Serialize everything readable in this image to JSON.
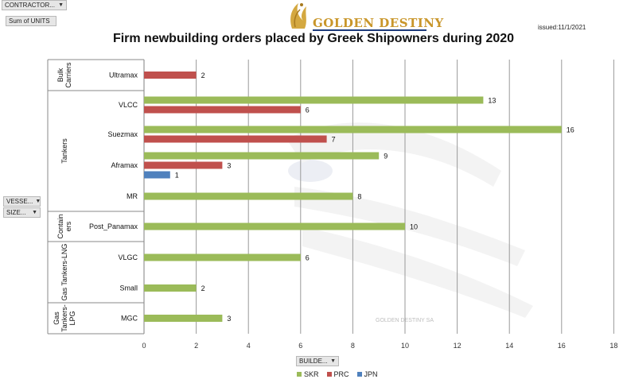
{
  "filters": {
    "contractor": "CONTRACTOR...",
    "sum_units": "Sum of UNITS",
    "vessel": "VESSE...",
    "size": "SIZE...",
    "builder": "BUILDE..."
  },
  "header": {
    "logo_text": "GOLDEN DESTINY",
    "issued": "issued:11/1/2021",
    "watermark": "GOLDEN DESTINY SA"
  },
  "colors": {
    "SKR": "#9bbb59",
    "PRC": "#c0504d",
    "JPN": "#4f81bd"
  },
  "chart_data": {
    "type": "bar",
    "orientation": "horizontal",
    "title": "Firm newbuilding orders placed by Greek Shipowners during 2020",
    "xlim": [
      0,
      18
    ],
    "xticks": [
      0,
      2,
      4,
      6,
      8,
      10,
      12,
      14,
      16,
      18
    ],
    "grid": true,
    "legend_position": "bottom",
    "groups": [
      {
        "label": "Bulk Carriers",
        "label_lines": [
          "Bulk",
          "Carriers"
        ],
        "categories": [
          {
            "label": "Ultramax",
            "bars": [
              {
                "series": "PRC",
                "value": 2
              }
            ]
          }
        ]
      },
      {
        "label": "Tankers",
        "label_lines": [
          "Tankers"
        ],
        "categories": [
          {
            "label": "VLCC",
            "bars": [
              {
                "series": "SKR",
                "value": 13
              },
              {
                "series": "PRC",
                "value": 6
              }
            ]
          },
          {
            "label": "Suezmax",
            "bars": [
              {
                "series": "SKR",
                "value": 16
              },
              {
                "series": "PRC",
                "value": 7
              }
            ]
          },
          {
            "label": "Aframax",
            "bars": [
              {
                "series": "SKR",
                "value": 9
              },
              {
                "series": "PRC",
                "value": 3
              },
              {
                "series": "JPN",
                "value": 1
              }
            ]
          },
          {
            "label": "MR",
            "bars": [
              {
                "series": "SKR",
                "value": 8
              }
            ]
          }
        ]
      },
      {
        "label": "Containers",
        "label_lines": [
          "Contain",
          "ers"
        ],
        "categories": [
          {
            "label": "Post_Panamax",
            "bars": [
              {
                "series": "SKR",
                "value": 10
              }
            ]
          }
        ]
      },
      {
        "label": "Gas Tankers-LNG",
        "label_lines": [
          "Gas Tankers-LNG"
        ],
        "categories": [
          {
            "label": "VLGC",
            "bars": [
              {
                "series": "SKR",
                "value": 6
              }
            ]
          },
          {
            "label": "Small",
            "bars": [
              {
                "series": "SKR",
                "value": 2
              }
            ]
          }
        ]
      },
      {
        "label": "Gas Tankers-LPG",
        "label_lines": [
          "Gas",
          "Tankers-",
          "LPG"
        ],
        "categories": [
          {
            "label": "MGC",
            "bars": [
              {
                "series": "SKR",
                "value": 3
              }
            ]
          }
        ]
      }
    ],
    "legend": [
      "SKR",
      "PRC",
      "JPN"
    ]
  }
}
